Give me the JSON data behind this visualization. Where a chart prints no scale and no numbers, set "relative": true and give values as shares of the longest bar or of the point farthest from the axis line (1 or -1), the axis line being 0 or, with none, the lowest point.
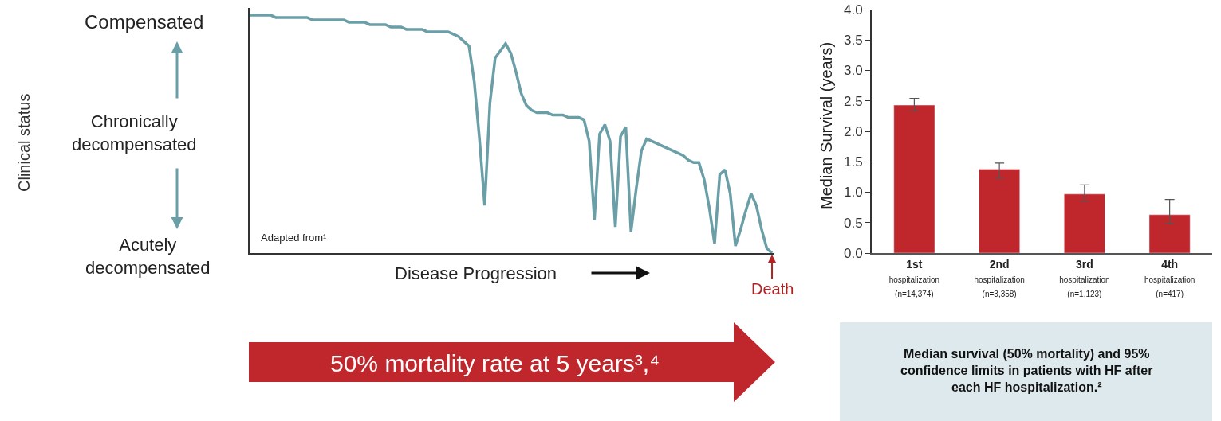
{
  "chart_data": [
    {
      "type": "line",
      "relative": true,
      "marker": "none",
      "line_style": "solid",
      "ylabel": "Clinical status",
      "xlabel": "Disease Progression",
      "categories": [
        null,
        null,
        null,
        null,
        null,
        null,
        null,
        null,
        null,
        null,
        null,
        null,
        null,
        null,
        null,
        null,
        null,
        null,
        null,
        null,
        null,
        null,
        null,
        null,
        null,
        null,
        null,
        null,
        null,
        null,
        null,
        null,
        null,
        null,
        null,
        null,
        null,
        null,
        null,
        null,
        null,
        null,
        null,
        null,
        null,
        null,
        null,
        null,
        null,
        null,
        null,
        null,
        null,
        null,
        null,
        null,
        null,
        null,
        null,
        null,
        null,
        null,
        null,
        null,
        null,
        null,
        null,
        null,
        null,
        null,
        null,
        null,
        null,
        null,
        null,
        null,
        null,
        null,
        null,
        null,
        null,
        null,
        null,
        null,
        null,
        null,
        null,
        null,
        null,
        null,
        null,
        null,
        null,
        null,
        null,
        null,
        null,
        null,
        null,
        null,
        null
      ],
      "series": [
        {
          "color": "#6b9fa7",
          "values": [
            1.0,
            1.0,
            1.0,
            1.0,
            1.0,
            0.99,
            0.99,
            0.99,
            0.99,
            0.99,
            0.99,
            0.99,
            0.98,
            0.98,
            0.98,
            0.98,
            0.98,
            0.98,
            0.98,
            0.97,
            0.97,
            0.97,
            0.97,
            0.96,
            0.96,
            0.96,
            0.96,
            0.95,
            0.95,
            0.95,
            0.94,
            0.94,
            0.94,
            0.94,
            0.93,
            0.93,
            0.93,
            0.93,
            0.93,
            0.92,
            0.91,
            0.89,
            0.87,
            0.72,
            0.48,
            0.2,
            0.63,
            0.82,
            0.85,
            0.88,
            0.84,
            0.76,
            0.67,
            0.62,
            0.6,
            0.59,
            0.59,
            0.59,
            0.58,
            0.58,
            0.58,
            0.57,
            0.57,
            0.57,
            0.56,
            0.47,
            0.14,
            0.5,
            0.54,
            0.47,
            0.11,
            0.49,
            0.53,
            0.09,
            0.27,
            0.43,
            0.48,
            0.47,
            0.46,
            0.45,
            0.44,
            0.43,
            0.42,
            0.41,
            0.39,
            0.38,
            0.38,
            0.31,
            0.19,
            0.04,
            0.33,
            0.35,
            0.25,
            0.03,
            0.1,
            0.18,
            0.25,
            0.2,
            0.1,
            0.02,
            0.0
          ]
        }
      ],
      "annotations": [
        "Compensated",
        "Chronically\ndecompensated",
        "Acutely\ndecompensated",
        "Adapted from¹",
        "Death",
        "50% mortality rate at 5 years³,⁴"
      ]
    },
    {
      "type": "bar",
      "ylabel": "Median Survival (years)",
      "categories": [
        "1st\nhospitalization\n(n=14,374)",
        "2nd\nhospitalization\n(n=3,358)",
        "3rd\nhospitalization\n(n=1,123)",
        "4th\nhospitalization\n(n=417)"
      ],
      "values": [
        2.43,
        1.38,
        0.97,
        0.63
      ],
      "errors": [
        [
          2.33,
          2.54
        ],
        [
          1.23,
          1.48
        ],
        [
          0.85,
          1.12
        ],
        [
          0.48,
          0.88
        ]
      ],
      "color": "#c0272d",
      "ylim": [
        0,
        4.0
      ],
      "yticks": [
        {
          "value": 0,
          "label": "0.0"
        },
        0.5,
        {
          "value": 1,
          "label": "1.0"
        },
        1.5,
        {
          "value": 2,
          "label": "2.0"
        },
        2.5,
        {
          "value": 3,
          "label": "3.0"
        },
        3.5,
        {
          "value": 4,
          "label": "4.0"
        }
      ],
      "annotations": [
        "Median survival (50% mortality) and 95% confidence limits in patients with HF after each HF hospitalization.²"
      ]
    }
  ]
}
